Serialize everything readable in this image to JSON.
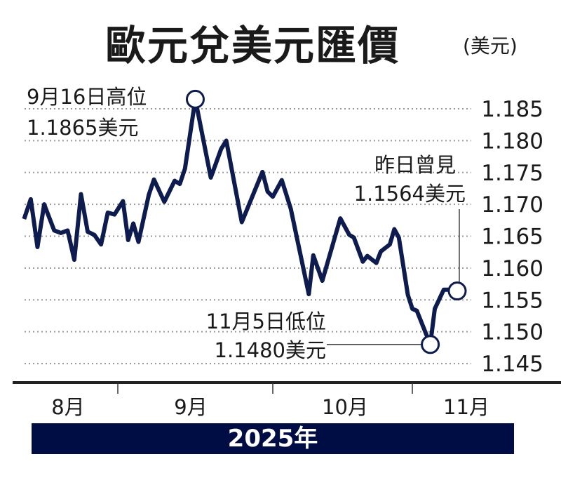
{
  "chart_data": {
    "type": "line",
    "title": "歐元兌美元匯價",
    "unit": "(美元)",
    "year_label": "2025年",
    "ylim": [
      1.145,
      1.185
    ],
    "y_ticks": [
      "1.185",
      "1.180",
      "1.175",
      "1.170",
      "1.165",
      "1.160",
      "1.155",
      "1.150",
      "1.145"
    ],
    "x_ticks": [
      "8月",
      "9月",
      "10月",
      "11月"
    ],
    "grid": true,
    "line_color": "#0d1b4f",
    "series": [
      {
        "points": [
          [
            "2025-08-04",
            1.1677
          ],
          [
            "2025-08-06",
            1.1708
          ],
          [
            "2025-08-08",
            1.1633
          ],
          [
            "2025-08-10",
            1.17
          ],
          [
            "2025-08-13",
            1.1659
          ],
          [
            "2025-08-15",
            1.1655
          ],
          [
            "2025-08-17",
            1.1659
          ],
          [
            "2025-08-19",
            1.1613
          ],
          [
            "2025-08-21",
            1.1716
          ],
          [
            "2025-08-23",
            1.1657
          ],
          [
            "2025-08-25",
            1.1652
          ],
          [
            "2025-08-27",
            1.1637
          ],
          [
            "2025-08-29",
            1.1687
          ],
          [
            "2025-08-31",
            1.1684
          ],
          [
            "2025-09-02",
            1.1705
          ],
          [
            "2025-09-03",
            1.1644
          ],
          [
            "2025-09-04",
            1.167
          ],
          [
            "2025-09-05",
            1.1641
          ],
          [
            "2025-09-07",
            1.1715
          ],
          [
            "2025-09-08",
            1.1739
          ],
          [
            "2025-09-10",
            1.1704
          ],
          [
            "2025-09-12",
            1.1737
          ],
          [
            "2025-09-13",
            1.1732
          ],
          [
            "2025-09-14",
            1.1756
          ],
          [
            "2025-09-16",
            1.1865
          ],
          [
            "2025-09-19",
            1.1742
          ],
          [
            "2025-09-21",
            1.1787
          ],
          [
            "2025-09-22",
            1.18
          ],
          [
            "2025-09-25",
            1.1672
          ],
          [
            "2025-09-29",
            1.1751
          ],
          [
            "2025-09-30",
            1.172
          ],
          [
            "2025-10-01",
            1.1712
          ],
          [
            "2025-10-03",
            1.1738
          ],
          [
            "2025-10-05",
            1.1693
          ],
          [
            "2025-10-09",
            1.1559
          ],
          [
            "2025-10-10",
            1.162
          ],
          [
            "2025-10-12",
            1.158
          ],
          [
            "2025-10-16",
            1.1678
          ],
          [
            "2025-10-18",
            1.1652
          ],
          [
            "2025-10-19",
            1.1648
          ],
          [
            "2025-10-21",
            1.161
          ],
          [
            "2025-10-22",
            1.1619
          ],
          [
            "2025-10-24",
            1.1608
          ],
          [
            "2025-10-25",
            1.1626
          ],
          [
            "2025-10-27",
            1.1637
          ],
          [
            "2025-10-28",
            1.1661
          ],
          [
            "2025-10-29",
            1.1648
          ],
          [
            "2025-10-31",
            1.1558
          ],
          [
            "2025-11-01",
            1.1536
          ],
          [
            "2025-11-02",
            1.1533
          ],
          [
            "2025-11-05",
            1.148
          ],
          [
            "2025-11-06",
            1.1536
          ],
          [
            "2025-11-08",
            1.1566
          ],
          [
            "2025-11-09",
            1.1566
          ],
          [
            "2025-11-11",
            1.1564
          ]
        ]
      }
    ],
    "annotations": {
      "high": {
        "line1": "9月16日高位",
        "line2": "1.1865美元",
        "date": "2025-09-16",
        "value": 1.1865
      },
      "low": {
        "line1": "11月5日低位",
        "line2": "1.1480美元",
        "date": "2025-11-05",
        "value": 1.148
      },
      "last": {
        "line1": "昨日曾見",
        "line2": "1.1564美元",
        "date": "2025-11-11",
        "value": 1.1564
      }
    }
  }
}
